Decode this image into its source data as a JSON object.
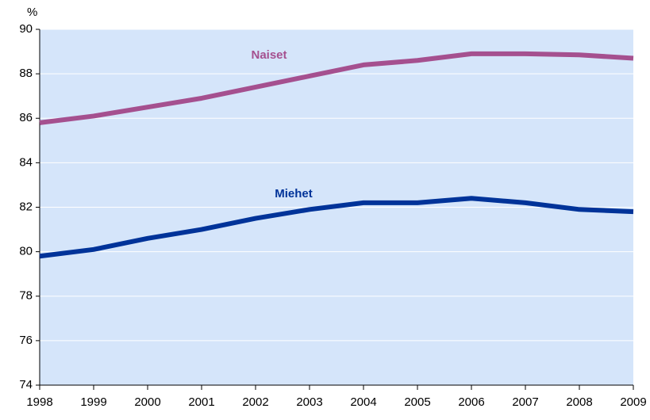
{
  "chart_data": {
    "type": "line",
    "y_label": "%",
    "x": [
      1998,
      1999,
      2000,
      2001,
      2002,
      2003,
      2004,
      2005,
      2006,
      2007,
      2008,
      2009
    ],
    "xlim": [
      1998,
      2009
    ],
    "xticks": [
      1998,
      1999,
      2000,
      2001,
      2002,
      2003,
      2004,
      2005,
      2006,
      2007,
      2008,
      2009
    ],
    "ylim": [
      74,
      90
    ],
    "yticks": [
      74,
      76,
      78,
      80,
      82,
      84,
      86,
      88,
      90
    ],
    "grid": true,
    "series": [
      {
        "name": "Naiset",
        "color": "#a5508f",
        "values": [
          85.8,
          86.1,
          86.5,
          86.9,
          87.4,
          87.9,
          88.4,
          88.6,
          88.9,
          88.9,
          88.85,
          88.7
        ]
      },
      {
        "name": "Miehet",
        "color": "#003399",
        "values": [
          79.8,
          80.1,
          80.6,
          81.0,
          81.5,
          81.9,
          82.2,
          82.2,
          82.4,
          82.2,
          81.9,
          81.8
        ]
      }
    ]
  }
}
